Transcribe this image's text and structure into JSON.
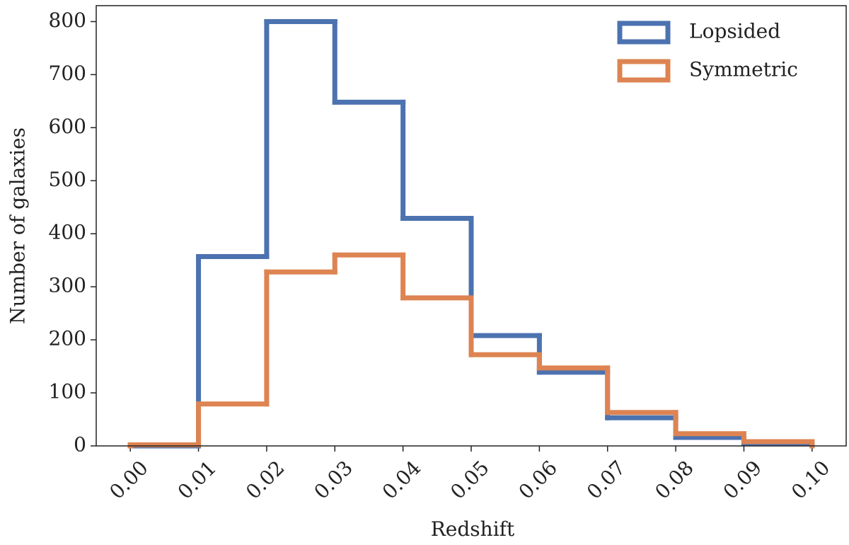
{
  "chart_data": {
    "type": "histogram",
    "xlabel": "Redshift",
    "ylabel": "Number of galaxies",
    "bins": [
      0.0,
      0.01,
      0.02,
      0.03,
      0.04,
      0.05,
      0.06,
      0.07,
      0.08,
      0.09,
      0.1
    ],
    "series": [
      {
        "name": "Lopsided",
        "color": "#4c72b0",
        "values": [
          0,
          357,
          800,
          648,
          429,
          208,
          139,
          53,
          16,
          5
        ]
      },
      {
        "name": "Symmetric",
        "color": "#dd8452",
        "values": [
          2,
          79,
          328,
          360,
          279,
          172,
          147,
          63,
          23,
          8
        ]
      }
    ],
    "xlim": [
      -0.005,
      0.105
    ],
    "ylim": [
      0,
      830
    ],
    "xticks": [
      {
        "value": 0.0,
        "label": "0.00"
      },
      0.01,
      0.02,
      0.03,
      0.04,
      0.05,
      0.06,
      0.07,
      0.08,
      0.09,
      {
        "value": 0.1,
        "label": "0.10"
      }
    ],
    "yticks": [
      0,
      100,
      200,
      300,
      400,
      500,
      600,
      700,
      800
    ],
    "legend": "upper right"
  }
}
